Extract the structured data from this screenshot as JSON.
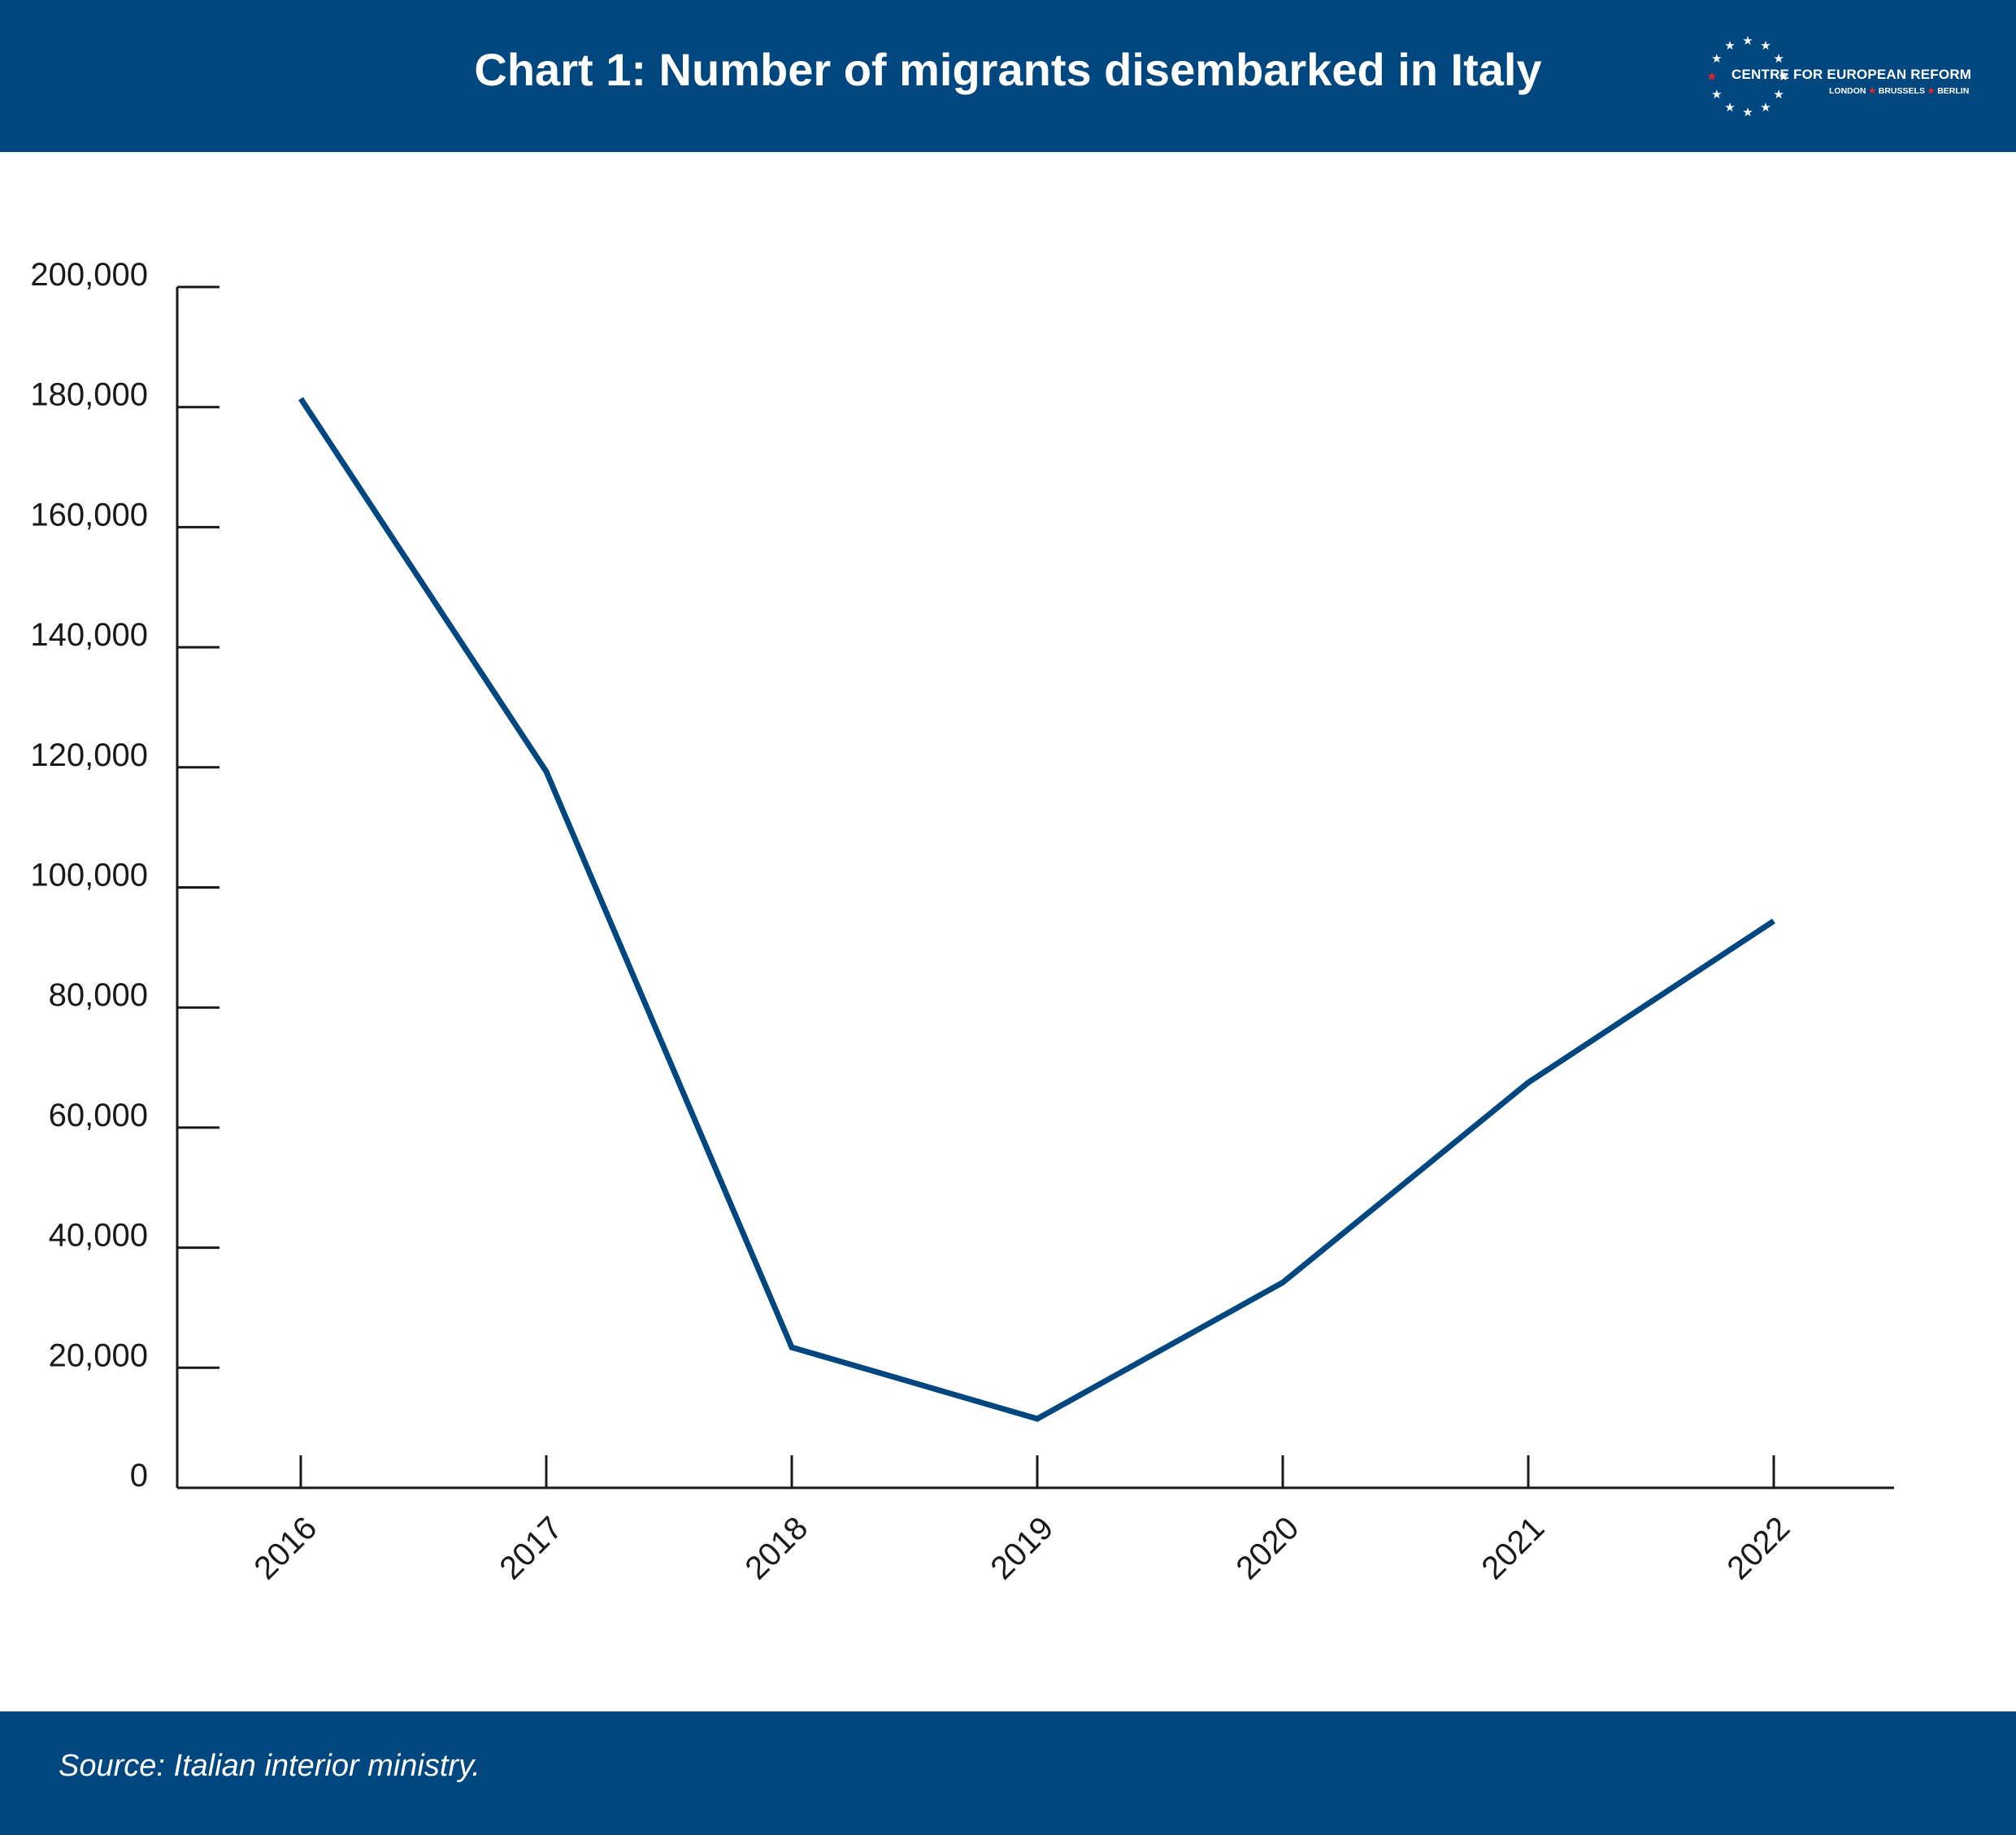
{
  "header": {
    "title": "Chart 1: Number of migrants disembarked in Italy"
  },
  "logo": {
    "name": "CENTRE FOR EUROPEAN REFORM",
    "cities": [
      "LONDON",
      "BRUSSELS",
      "BERLIN"
    ],
    "star_color": "#ffffff",
    "accent_star_color": "#e3262b"
  },
  "footer": {
    "source": "Source: Italian interior ministry."
  },
  "colors": {
    "brand": "#00467f",
    "line": "#00467f",
    "axis": "#1a1a1a"
  },
  "chart_data": {
    "type": "line",
    "title": "Chart 1: Number of migrants disembarked in Italy",
    "xlabel": "",
    "ylabel": "",
    "categories": [
      "2016",
      "2017",
      "2018",
      "2019",
      "2020",
      "2021",
      "2022"
    ],
    "series": [
      {
        "values": [
          181400,
          119300,
          23400,
          11500,
          34200,
          67500,
          94400
        ]
      }
    ],
    "ylim": [
      0,
      200000
    ],
    "yticks": [
      0,
      20000,
      40000,
      60000,
      80000,
      100000,
      120000,
      140000,
      160000,
      180000,
      200000
    ],
    "ytick_labels": [
      "0",
      "20,000",
      "40,000",
      "60,000",
      "80,000",
      "100,000",
      "120,000",
      "140,000",
      "160,000",
      "180,000",
      "200,000"
    ],
    "grid": false,
    "legend": "none"
  }
}
